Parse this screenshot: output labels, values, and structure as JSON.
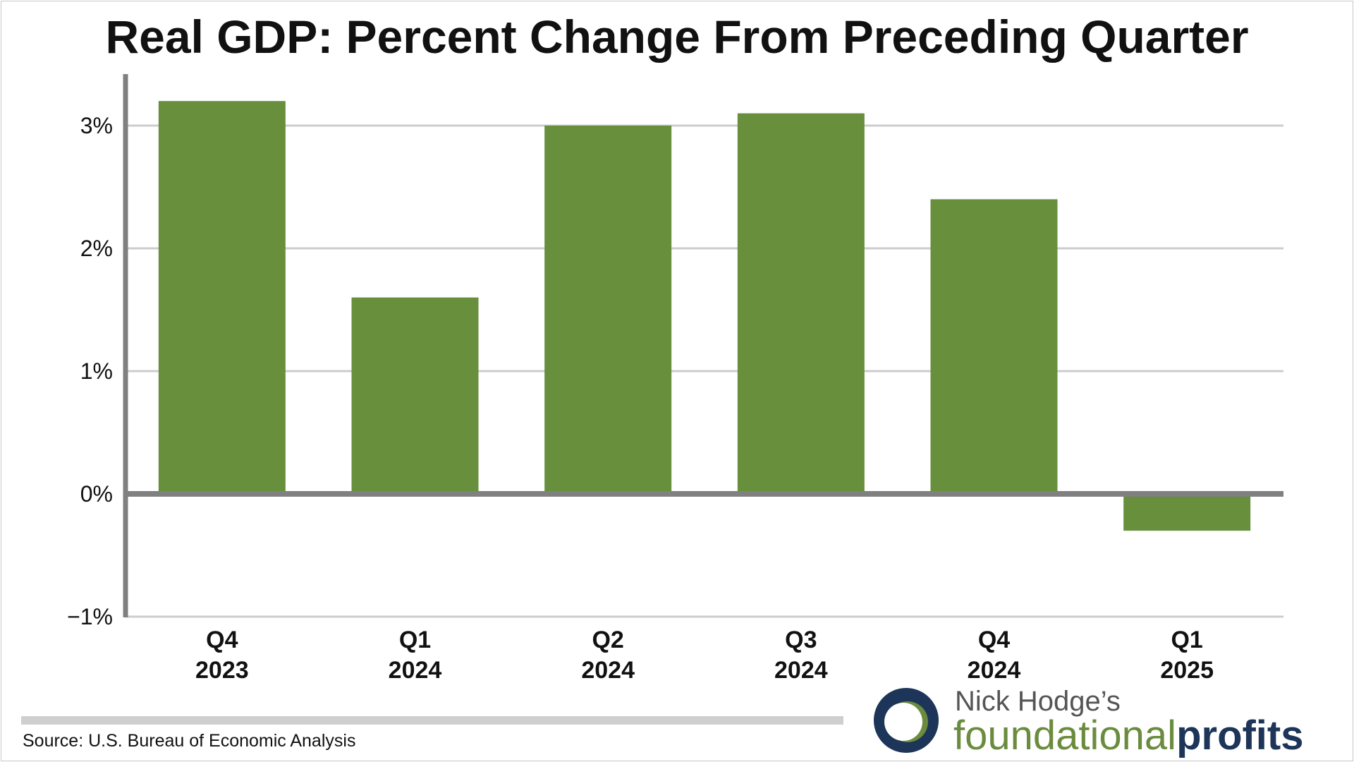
{
  "colors": {
    "bar": "#678f3c",
    "axis": "#808080",
    "grid": "#cccccc",
    "logo_navy": "#1d3558",
    "logo_green": "#6b8c3e"
  },
  "chart_data": {
    "type": "bar",
    "title": "Real GDP: Percent Change From Preceding Quarter",
    "categories": [
      {
        "quarter": "Q4",
        "year": "2023"
      },
      {
        "quarter": "Q1",
        "year": "2024"
      },
      {
        "quarter": "Q2",
        "year": "2024"
      },
      {
        "quarter": "Q3",
        "year": "2024"
      },
      {
        "quarter": "Q4",
        "year": "2024"
      },
      {
        "quarter": "Q1",
        "year": "2025"
      }
    ],
    "values": [
      3.2,
      1.6,
      3.0,
      3.1,
      2.4,
      -0.3
    ],
    "unit": "%",
    "ylim": [
      -1,
      3.4
    ],
    "yticks": [
      {
        "value": 3,
        "label": "3%"
      },
      {
        "value": 2,
        "label": "2%"
      },
      {
        "value": 1,
        "label": "1%"
      },
      {
        "value": 0,
        "label": "0%"
      },
      {
        "value": -1,
        "label": "−1%"
      }
    ],
    "grid": true,
    "legend": "none"
  },
  "footer": {
    "source": "Source: U.S. Bureau of Economic Analysis"
  },
  "logo": {
    "top_text": "Nick Hodge’s",
    "word_a": "foundational",
    "word_b": "profits",
    "icon": "crescent-logo-icon"
  }
}
